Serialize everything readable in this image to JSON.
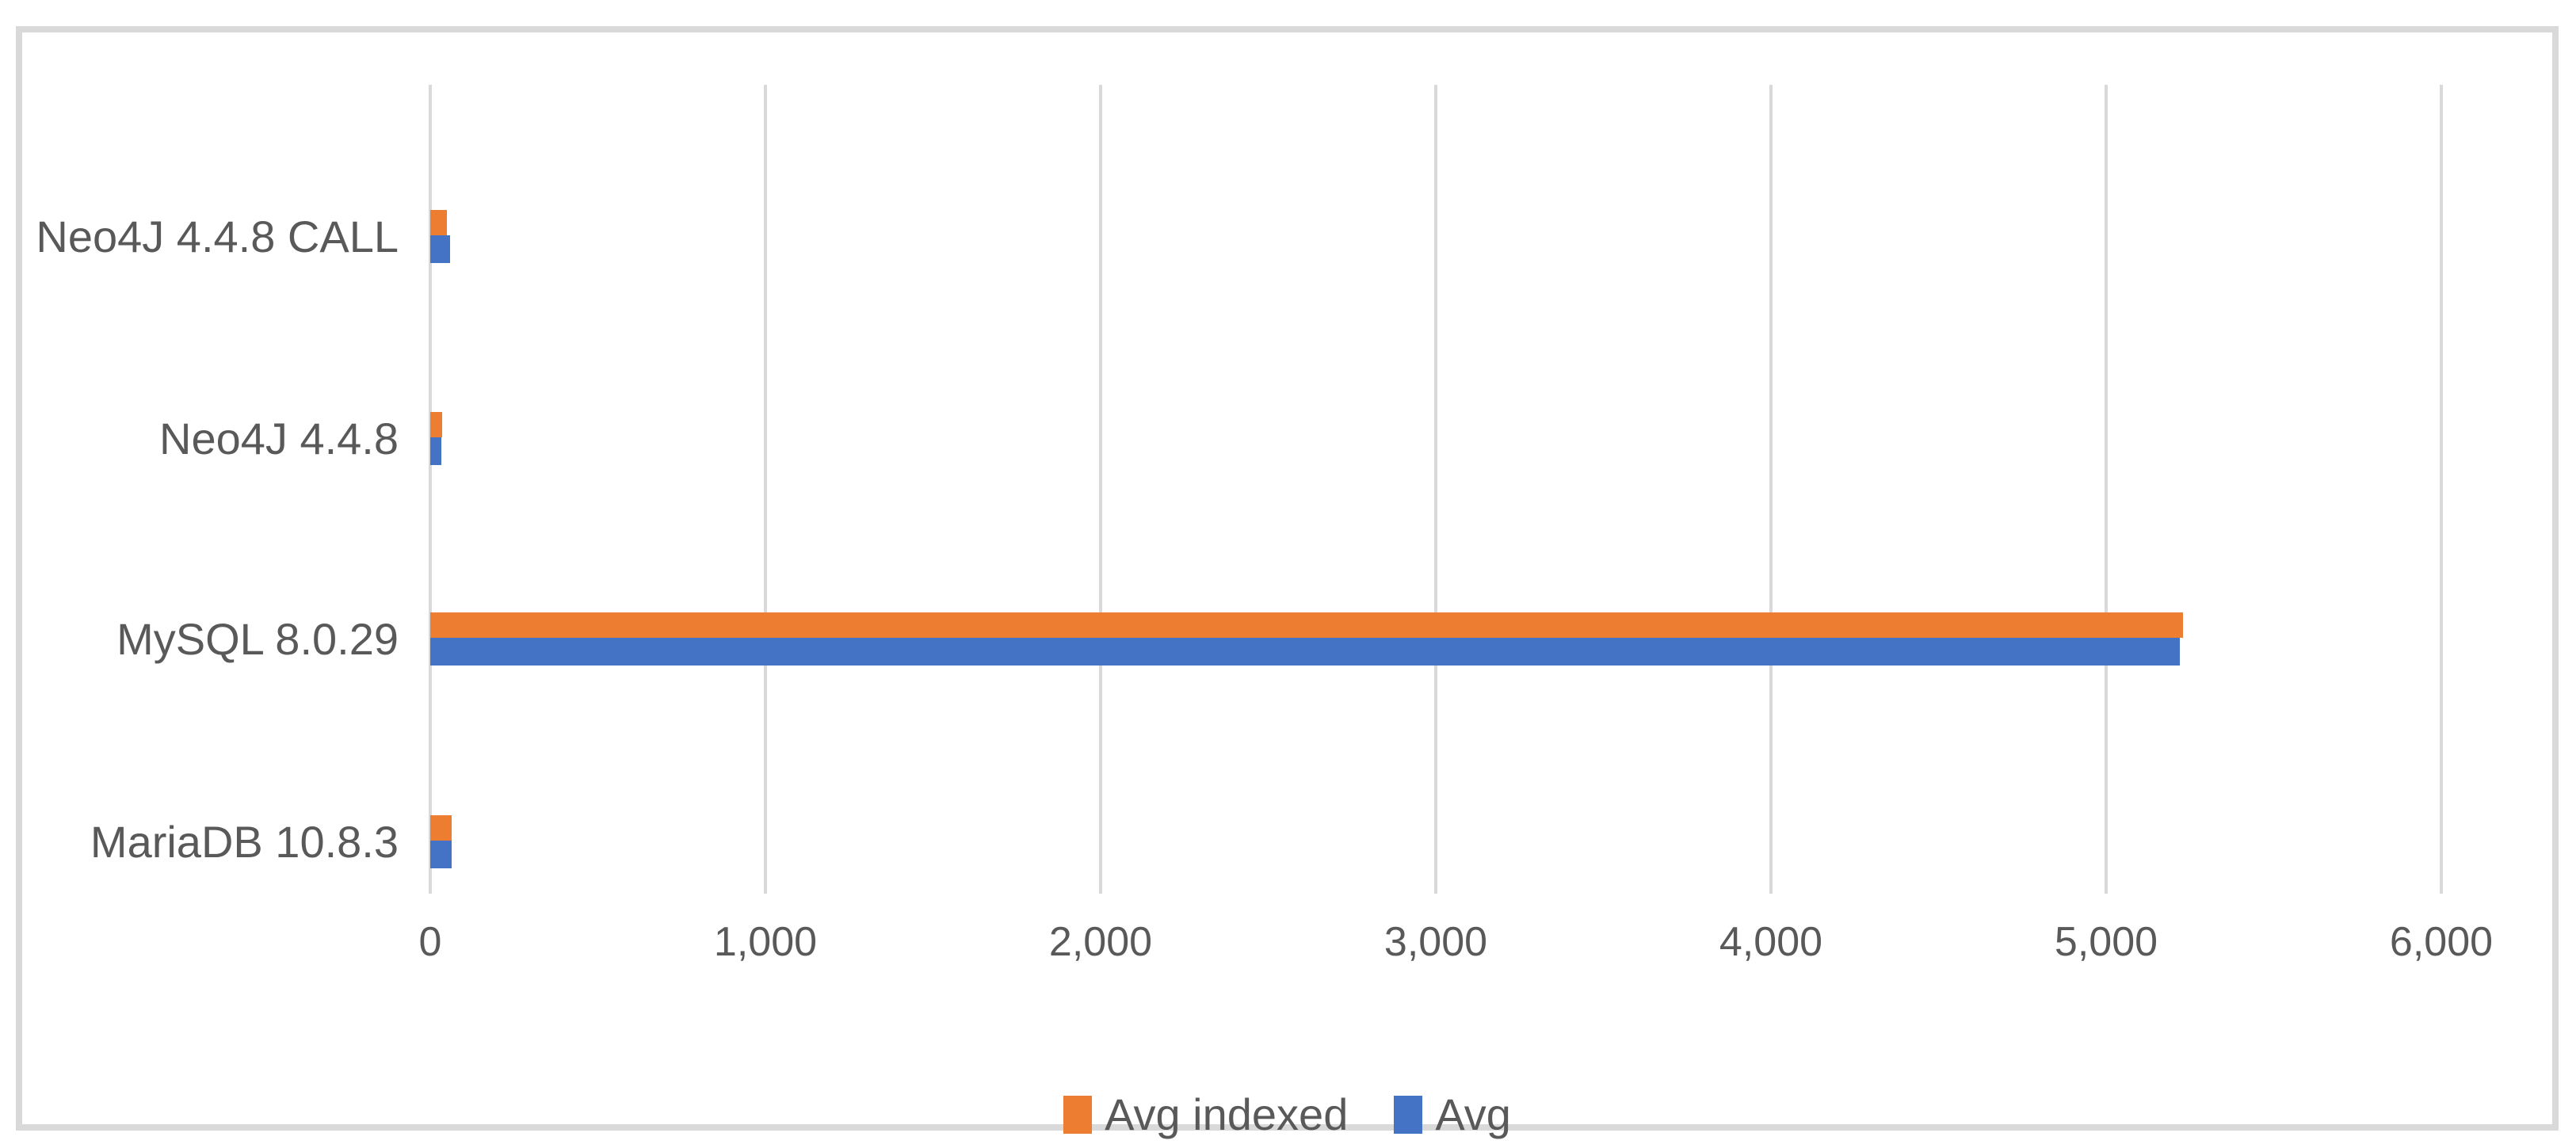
{
  "chart_data": {
    "type": "bar",
    "orientation": "horizontal",
    "title": "",
    "xlabel": "",
    "ylabel": "",
    "categories": [
      "Neo4J 4.4.8 CALL",
      "Neo4J 4.4.8",
      "MySQL 8.0.29",
      "MariaDB 10.8.3"
    ],
    "series": [
      {
        "name": "Avg indexed",
        "color": "#ED7D31",
        "values": [
          50,
          35,
          5230,
          64
        ]
      },
      {
        "name": "Avg",
        "color": "#4472C4",
        "values": [
          60,
          33,
          5220,
          65
        ]
      }
    ],
    "xlim": [
      0,
      6000
    ],
    "x_ticks": [
      {
        "value": 0,
        "label": "0"
      },
      {
        "value": 1000,
        "label": "1,000"
      },
      {
        "value": 2000,
        "label": "2,000"
      },
      {
        "value": 3000,
        "label": "3,000"
      },
      {
        "value": 4000,
        "label": "4,000"
      },
      {
        "value": 5000,
        "label": "5,000"
      },
      {
        "value": 6000,
        "label": "6,000"
      }
    ],
    "grid": "vertical-only",
    "legend_position": "bottom-center"
  },
  "colors": {
    "background": "#FFFFFF",
    "frame_border": "#D9D9D9",
    "gridline": "#D9D9D9",
    "axis_text": "#595959",
    "series_avg_indexed": "#ED7D31",
    "series_avg": "#4472C4"
  }
}
